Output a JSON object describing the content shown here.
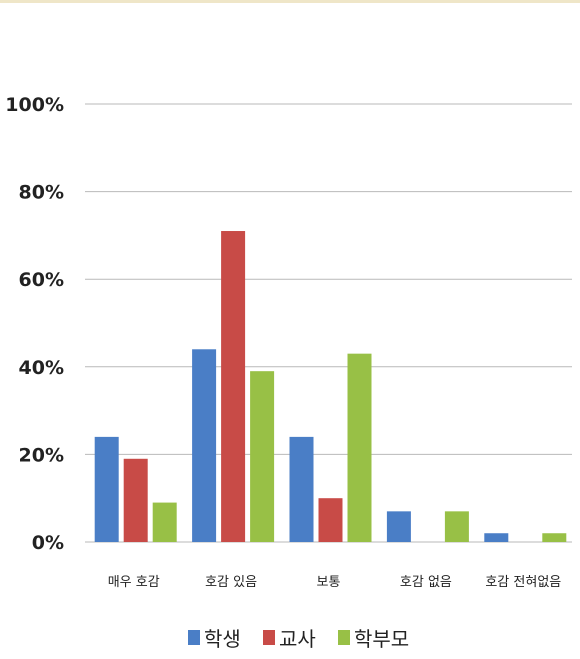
{
  "chart_data": {
    "type": "bar",
    "title": "",
    "xlabel": "",
    "ylabel": "",
    "ylim": [
      0,
      100
    ],
    "yticks": [
      "0%",
      "20%",
      "40%",
      "60%",
      "80%",
      "100%"
    ],
    "ytick_values": [
      0,
      20,
      40,
      60,
      80,
      100
    ],
    "categories": [
      "매우 호감",
      "호감 있음",
      "보통",
      "호감 없음",
      "호감 전혀없음"
    ],
    "series": [
      {
        "name": "학생",
        "color": "#4a7ec6",
        "values": [
          24,
          44,
          24,
          7,
          2
        ]
      },
      {
        "name": "교사",
        "color": "#c84b47",
        "values": [
          19,
          71,
          10,
          0,
          0
        ]
      },
      {
        "name": "학부모",
        "color": "#98c046",
        "values": [
          9,
          39,
          43,
          7,
          2
        ]
      }
    ],
    "grid": true,
    "legend_position": "bottom"
  }
}
